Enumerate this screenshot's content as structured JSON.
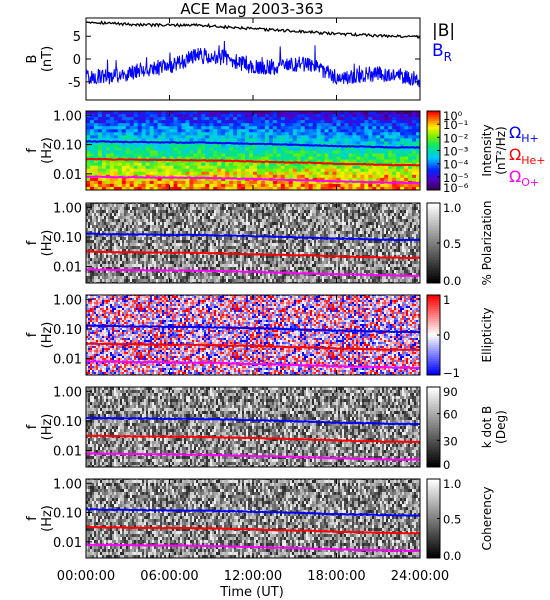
{
  "chart_data": [
    {
      "type": "line",
      "title": "ACE Mag 2003-363",
      "ylabel": "B",
      "ylabel_unit": "(nT)",
      "ylim": [
        -9,
        9
      ],
      "yticks": [
        5,
        0,
        -5
      ],
      "legend_placement": "right",
      "series": [
        {
          "name": "|B|",
          "color": "#000000",
          "x": [
            0,
            2,
            4,
            6,
            8,
            10,
            12,
            14,
            16,
            18,
            20,
            22,
            24
          ],
          "values": [
            8.2,
            7.8,
            7.5,
            7.4,
            7.5,
            7.0,
            6.6,
            6.3,
            5.9,
            5.5,
            5.3,
            5.0,
            4.9
          ]
        },
        {
          "name": "B",
          "name_sub": "R",
          "color": "#0000ff",
          "x": [
            0,
            2,
            4,
            6,
            8,
            10,
            12,
            14,
            16,
            18,
            20,
            22,
            24
          ],
          "values": [
            -4,
            -3.8,
            -2.5,
            -1.5,
            0.8,
            0.3,
            -2.0,
            -1.5,
            -1.0,
            -4.0,
            -3.5,
            -3.2,
            -4.5
          ]
        }
      ]
    },
    {
      "type": "heatmap",
      "ylabel": "f",
      "ylabel_unit": "(Hz)",
      "yscale": "log",
      "ylim": [
        0.0028,
        1.4
      ],
      "yticks": [
        "1.00",
        "0.10",
        "0.01"
      ],
      "colorbar": {
        "label": "Intensity",
        "unit": "(nT²/Hz)",
        "ticks": [
          "10⁰",
          "10⁻¹",
          "10⁻²",
          "10⁻³",
          "10⁻⁴",
          "10⁻⁵",
          "10⁻⁶"
        ]
      },
      "colormap": "rainbow",
      "line_labels": [
        {
          "symbol": "Ω",
          "sub": "H+",
          "color": "#0000ff"
        },
        {
          "symbol": "Ω",
          "sub": "He+",
          "color": "#ff0000"
        },
        {
          "symbol": "Ω",
          "sub": "O+",
          "color": "#ff00ff"
        }
      ]
    },
    {
      "type": "heatmap",
      "ylabel": "f",
      "ylabel_unit": "(Hz)",
      "yscale": "log",
      "ylim": [
        0.0028,
        1.4
      ],
      "yticks": [
        "1.00",
        "0.10",
        "0.01"
      ],
      "colorbar": {
        "label": "% Polarization",
        "ticks": [
          "1.0",
          "0.5",
          "0.0"
        ]
      },
      "colormap": "gray"
    },
    {
      "type": "heatmap",
      "ylabel": "f",
      "ylabel_unit": "(Hz)",
      "yscale": "log",
      "ylim": [
        0.0028,
        1.4
      ],
      "yticks": [
        "1.00",
        "0.10",
        "0.01"
      ],
      "colorbar": {
        "label": "Ellipticity",
        "ticks": [
          "1",
          "0",
          "−1"
        ]
      },
      "colormap": "blue-white-red"
    },
    {
      "type": "heatmap",
      "ylabel": "f",
      "ylabel_unit": "(Hz)",
      "yscale": "log",
      "ylim": [
        0.0028,
        1.4
      ],
      "yticks": [
        "1.00",
        "0.10",
        "0.01"
      ],
      "colorbar": {
        "label": "k dot B",
        "unit": "(Deg)",
        "ticks": [
          "90",
          "60",
          "30",
          "0"
        ]
      },
      "colormap": "gray"
    },
    {
      "type": "heatmap",
      "ylabel": "f",
      "ylabel_unit": "(Hz)",
      "yscale": "log",
      "ylim": [
        0.0028,
        1.4
      ],
      "yticks": [
        "1.00",
        "0.10",
        "0.01"
      ],
      "colorbar": {
        "label": "Coherency",
        "ticks": [
          "1.0",
          "0.5",
          "0.0"
        ]
      },
      "colormap": "gray"
    }
  ],
  "gyro_lines": {
    "x": [
      0,
      2,
      4,
      6,
      8,
      10,
      12,
      14,
      16,
      18,
      20,
      22,
      24
    ],
    "H+": [
      0.128,
      0.124,
      0.121,
      0.118,
      0.117,
      0.112,
      0.106,
      0.101,
      0.095,
      0.088,
      0.085,
      0.08,
      0.079
    ],
    "He+": [
      0.032,
      0.031,
      0.03,
      0.0295,
      0.029,
      0.028,
      0.0265,
      0.025,
      0.024,
      0.022,
      0.021,
      0.02,
      0.0197
    ],
    "O+": [
      0.008,
      0.0078,
      0.0076,
      0.0074,
      0.0073,
      0.007,
      0.0066,
      0.0063,
      0.0059,
      0.0055,
      0.0053,
      0.005,
      0.0049
    ]
  },
  "xaxis": {
    "label": "Time (UT)",
    "xlim": [
      0,
      24
    ],
    "ticks": [
      0,
      6,
      12,
      18,
      24
    ],
    "tick_labels": [
      "00:00:00",
      "06:00:00",
      "12:00:00",
      "18:00:00",
      "24:00:00"
    ]
  }
}
